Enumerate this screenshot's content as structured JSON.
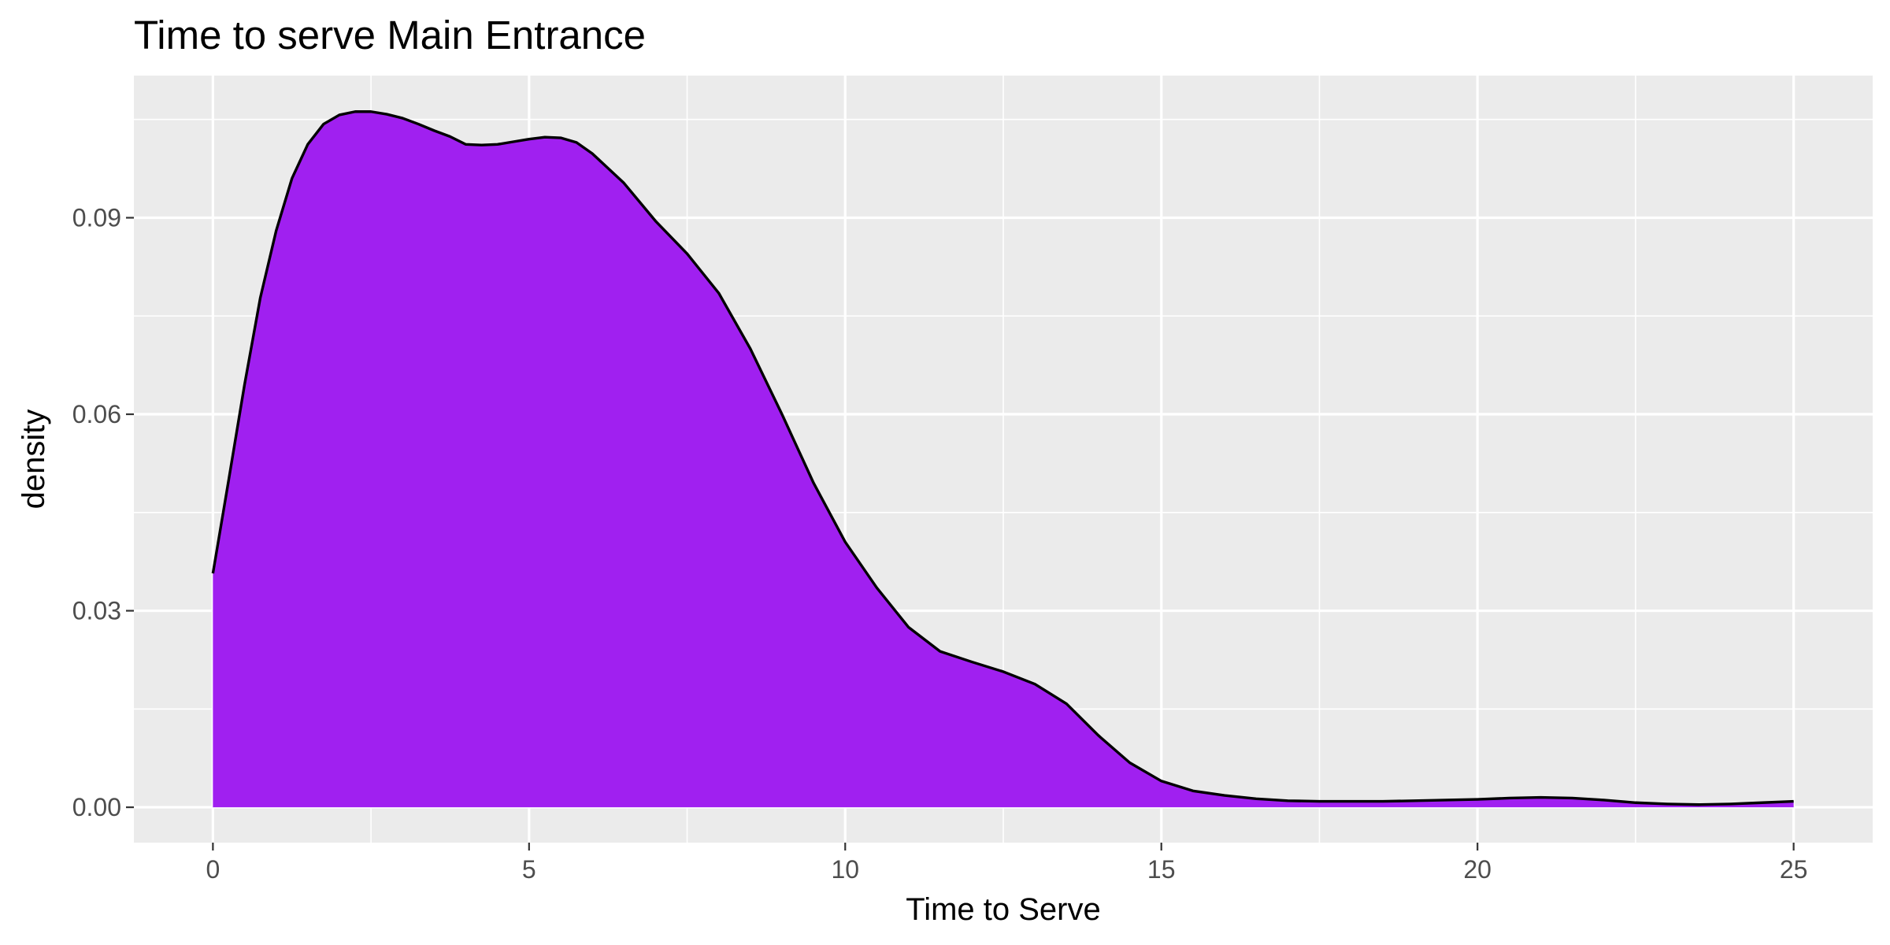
{
  "chart_data": {
    "type": "area",
    "title": "Time to serve Main Entrance",
    "xlabel": "Time to Serve",
    "ylabel": "density",
    "xlim": [
      -1.25,
      26.25
    ],
    "ylim": [
      -0.0054,
      0.1117
    ],
    "x_ticks": [
      0,
      5,
      10,
      15,
      20,
      25
    ],
    "x_tick_labels": [
      "0",
      "5",
      "10",
      "15",
      "20",
      "25"
    ],
    "y_ticks": [
      0.0,
      0.03,
      0.06,
      0.09
    ],
    "y_tick_labels": [
      "0.00",
      "0.03",
      "0.06",
      "0.09"
    ],
    "grid": true,
    "legend": "none",
    "colors": {
      "fill": "#a020f0",
      "outline": "#000000",
      "panel": "#ebebeb",
      "grid": "#ffffff"
    },
    "series": [
      {
        "x": [
          0,
          0.25,
          0.5,
          0.75,
          1.0,
          1.25,
          1.5,
          1.75,
          2.0,
          2.25,
          2.5,
          2.75,
          3.0,
          3.25,
          3.5,
          3.75,
          4.0,
          4.25,
          4.5,
          4.75,
          5.0,
          5.25,
          5.5,
          5.75,
          6.0,
          6.5,
          7.0,
          7.5,
          8.0,
          8.5,
          9.0,
          9.5,
          10.0,
          10.5,
          11.0,
          11.5,
          12.0,
          12.5,
          13.0,
          13.5,
          14.0,
          14.5,
          15.0,
          15.5,
          16.0,
          16.5,
          17.0,
          17.5,
          18.0,
          18.5,
          19.0,
          19.5,
          20.0,
          20.5,
          21.0,
          21.5,
          22.0,
          22.5,
          23.0,
          23.5,
          24.0,
          24.5,
          25.0
        ],
        "y": [
          0.0357,
          0.05,
          0.0645,
          0.0778,
          0.088,
          0.096,
          0.1012,
          0.1043,
          0.1057,
          0.1062,
          0.1062,
          0.1058,
          0.1052,
          0.1043,
          0.1033,
          0.1024,
          0.1012,
          0.1011,
          0.1012,
          0.1016,
          0.102,
          0.1023,
          0.1022,
          0.1015,
          0.0998,
          0.0953,
          0.0895,
          0.0845,
          0.0785,
          0.07,
          0.06,
          0.0495,
          0.0405,
          0.0335,
          0.0275,
          0.0238,
          0.0222,
          0.0207,
          0.0188,
          0.0158,
          0.011,
          0.0068,
          0.004,
          0.0025,
          0.0018,
          0.0013,
          0.001,
          0.0009,
          0.0009,
          0.0009,
          0.001,
          0.0011,
          0.0012,
          0.0014,
          0.0015,
          0.0014,
          0.0011,
          0.0007,
          0.0005,
          0.0004,
          0.0005,
          0.0007,
          0.0009
        ]
      }
    ]
  }
}
